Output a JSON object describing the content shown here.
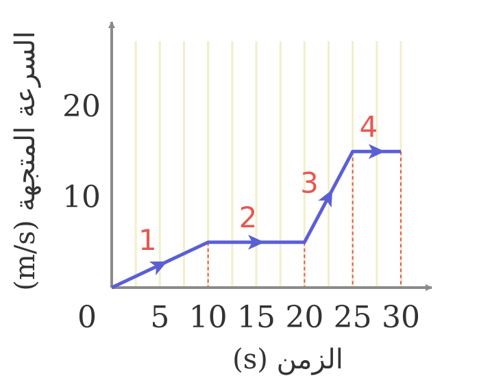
{
  "chart_data": {
    "type": "line",
    "xlabel": "الزمن (s)",
    "ylabel": "السرعة المتجهة (m/s)",
    "x_ticks": [
      "0",
      "5",
      "10",
      "15",
      "20",
      "25",
      "30"
    ],
    "y_ticks": [
      "10",
      "20"
    ],
    "xlim": [
      0,
      30
    ],
    "ylim": [
      0,
      20
    ],
    "grid": true,
    "series": [
      {
        "x": [
          0,
          10,
          20,
          25,
          30
        ],
        "y": [
          0,
          5,
          5,
          15,
          15
        ]
      }
    ],
    "segment_labels": [
      {
        "text": "1",
        "x": 5,
        "y": 2.5
      },
      {
        "text": "2",
        "x": 15,
        "y": 5
      },
      {
        "text": "3",
        "x": 22.5,
        "y": 10
      },
      {
        "text": "4",
        "x": 27.5,
        "y": 15
      }
    ],
    "dashed_drops_at_x": [
      10,
      20,
      25,
      30
    ],
    "colors": {
      "line": "#5b5fd6",
      "labels": "#e8574f",
      "dashes": "#e8574f",
      "axes": "#8a8a8a",
      "grid": "#f1efc8"
    }
  }
}
